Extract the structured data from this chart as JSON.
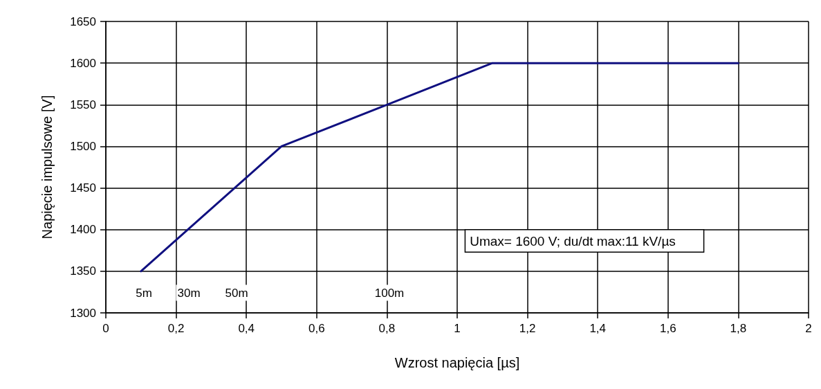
{
  "chart_data": {
    "type": "line",
    "xlabel": "Wzrost napięcia [µs]",
    "ylabel": "Napięcie impulsowe [V]",
    "x": [
      0.1,
      0.5,
      0.8,
      1.1,
      1.8
    ],
    "series": [
      {
        "color": "#101080",
        "values": [
          1350,
          1500,
          1550,
          1600,
          1600
        ]
      }
    ],
    "xlim": [
      0,
      2
    ],
    "xticks": [
      0,
      {
        "value": 0.2,
        "label": "0,2"
      },
      {
        "value": 0.4,
        "label": "0,4"
      },
      {
        "value": 0.6,
        "label": "0,6"
      },
      {
        "value": 0.8,
        "label": "0,8"
      },
      1,
      {
        "value": 1.2,
        "label": "1,2"
      },
      {
        "value": 1.4,
        "label": "1,4"
      },
      {
        "value": 1.6,
        "label": "1,6"
      },
      {
        "value": 1.8,
        "label": "1,8"
      },
      2
    ],
    "ylim": [
      1300,
      1650
    ],
    "yticks": [
      1300,
      1350,
      1400,
      1450,
      1500,
      1550,
      1600,
      1650
    ],
    "grid": true,
    "marker": "none",
    "line_style": "solid",
    "annotations": [
      "5m",
      "30m",
      "50m",
      "100m",
      "Umax= 1600 V; du/dt max:11 kV/µs"
    ]
  }
}
